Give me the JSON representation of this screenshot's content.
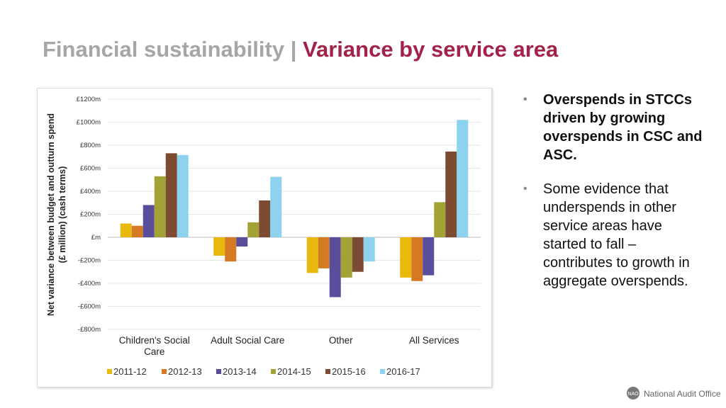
{
  "header": {
    "title_part1": "Financial sustainability |",
    "title_part2": "Variance by service area"
  },
  "chart_data": {
    "type": "bar",
    "ylabel_lines": [
      "Net variance between budget and outturn spend",
      "(£ million) (cash terms)"
    ],
    "categories": [
      "Children's Social Care",
      "Adult Social Care",
      "Other",
      "All Services"
    ],
    "series": [
      {
        "name": "2011-12",
        "color": "#e8b90c",
        "values": [
          120,
          -160,
          -310,
          -350
        ]
      },
      {
        "name": "2012-13",
        "color": "#d57a22",
        "values": [
          100,
          -210,
          -270,
          -380
        ]
      },
      {
        "name": "2013-14",
        "color": "#5a4e9c",
        "values": [
          280,
          -80,
          -520,
          -330
        ]
      },
      {
        "name": "2014-15",
        "color": "#a3a235",
        "values": [
          530,
          130,
          -350,
          305
        ]
      },
      {
        "name": "2015-16",
        "color": "#7d4a32",
        "values": [
          730,
          320,
          -300,
          745
        ]
      },
      {
        "name": "2016-17",
        "color": "#8dd3ef",
        "values": [
          715,
          525,
          -210,
          1020
        ]
      }
    ],
    "ylim": [
      -800,
      1200
    ],
    "yticks": [
      {
        "value": -800,
        "label": "-£800m"
      },
      {
        "value": -600,
        "label": "-£600m"
      },
      {
        "value": -400,
        "label": "-£400m"
      },
      {
        "value": -200,
        "label": "-£200m"
      },
      {
        "value": 0,
        "label": "£m"
      },
      {
        "value": 200,
        "label": "£200m"
      },
      {
        "value": 400,
        "label": "£400m"
      },
      {
        "value": 600,
        "label": "£600m"
      },
      {
        "value": 800,
        "label": "£800m"
      },
      {
        "value": 1000,
        "label": "£1000m"
      },
      {
        "value": 1200,
        "label": "£1200m"
      }
    ],
    "grid": true
  },
  "bullets": [
    {
      "text": "Overspends in STCCs driven by growing overspends in CSC and ASC.",
      "bold": true
    },
    {
      "text": "Some evidence that underspends in other service areas have started to fall – contributes to growth in aggregate overspends.",
      "bold": false
    }
  ],
  "footer": {
    "logo_badge": "NAO",
    "logo_text": "National Audit Office"
  }
}
